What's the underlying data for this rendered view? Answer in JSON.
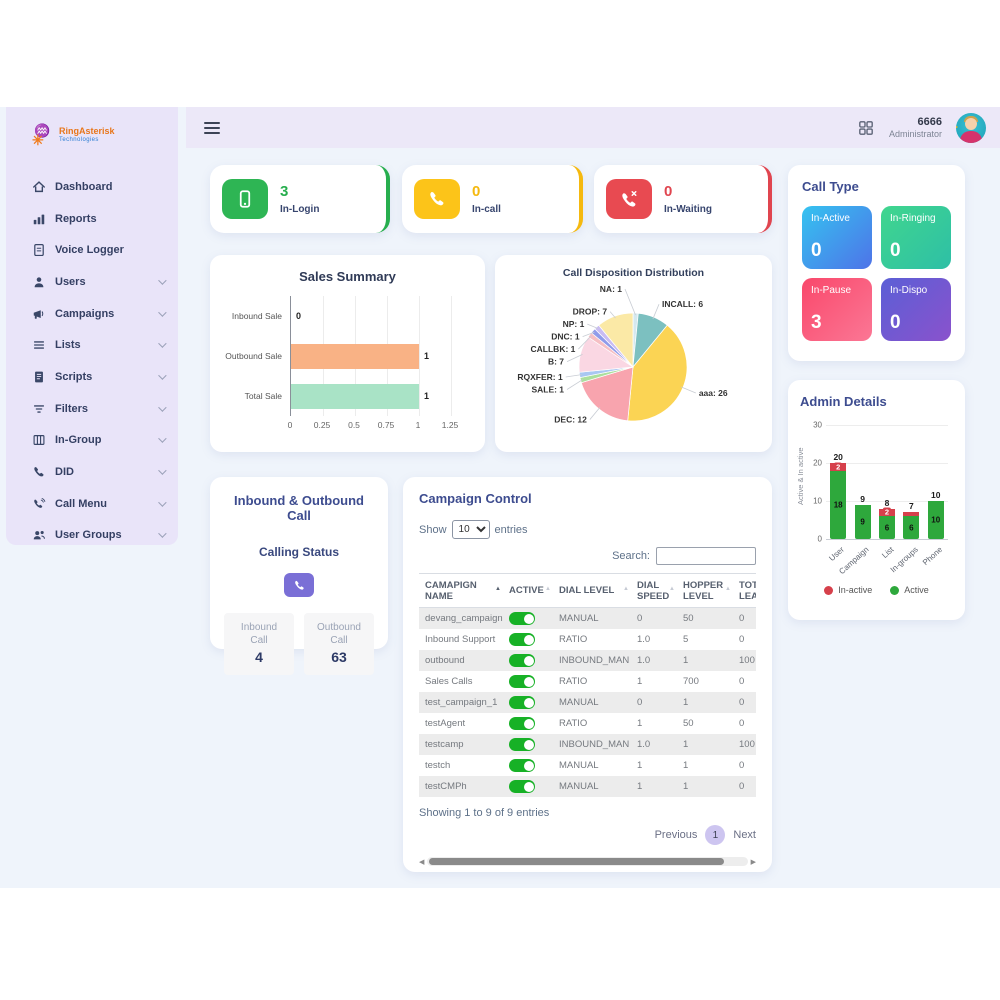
{
  "topbar": {
    "user_id": "6666",
    "user_role": "Administrator"
  },
  "sidebar": {
    "logo_title": "RingAsterisk",
    "logo_subtitle": "Technologies",
    "items": [
      {
        "label": "Dashboard",
        "icon": "home-icon",
        "expandable": false
      },
      {
        "label": "Reports",
        "icon": "bar-chart-icon",
        "expandable": false
      },
      {
        "label": "Voice Logger",
        "icon": "voice-logger-icon",
        "expandable": false
      },
      {
        "label": "Users",
        "icon": "user-icon",
        "expandable": true
      },
      {
        "label": "Campaigns",
        "icon": "megaphone-icon",
        "expandable": true
      },
      {
        "label": "Lists",
        "icon": "list-icon",
        "expandable": true
      },
      {
        "label": "Scripts",
        "icon": "script-icon",
        "expandable": true
      },
      {
        "label": "Filters",
        "icon": "filter-icon",
        "expandable": true
      },
      {
        "label": "In-Group",
        "icon": "columns-icon",
        "expandable": true
      },
      {
        "label": "DID",
        "icon": "phone-icon",
        "expandable": true
      },
      {
        "label": "Call Menu",
        "icon": "call-menu-icon",
        "expandable": true
      },
      {
        "label": "User Groups",
        "icon": "user-group-icon",
        "expandable": true
      }
    ]
  },
  "stat_cards": [
    {
      "value": "3",
      "label": "In-Login",
      "color": "#27AE4E",
      "icon_bg": "#2EB554",
      "icon": "mobile-phone-icon"
    },
    {
      "value": "0",
      "label": "In-call",
      "color": "#F5B90F",
      "icon_bg": "#FCC419",
      "icon": "phone-icon"
    },
    {
      "value": "0",
      "label": "In-Waiting",
      "color": "#E0454F",
      "icon_bg": "#E84A51",
      "icon": "phone-missed-icon"
    }
  ],
  "call_type": {
    "title": "Call Type",
    "tiles": [
      {
        "label": "In-Active",
        "value": "0",
        "gradient": [
          "#35C3F0",
          "#4E73E8"
        ]
      },
      {
        "label": "In-Ringing",
        "value": "0",
        "gradient": [
          "#40D68E",
          "#2EBFA6"
        ]
      },
      {
        "label": "In-Pause",
        "value": "3",
        "gradient": [
          "#F9486B",
          "#FB7795"
        ]
      },
      {
        "label": "In-Dispo",
        "value": "0",
        "gradient": [
          "#5B5FD6",
          "#8A52CC"
        ]
      }
    ]
  },
  "chart_data": [
    {
      "id": "sales_summary",
      "type": "bar",
      "orientation": "horizontal",
      "title": "Sales Summary",
      "categories": [
        "Inbound Sale",
        "Outbound Sale",
        "Total Sale"
      ],
      "values": [
        0,
        1,
        1
      ],
      "bar_colors": [
        "#F9B285",
        "#F9B285",
        "#A9E3C6"
      ],
      "xticks": [
        0,
        0.25,
        0.5,
        0.75,
        1,
        1.25
      ],
      "xlim": [
        0,
        1.25
      ],
      "grid": true
    },
    {
      "id": "call_disposition",
      "type": "pie",
      "title": "Call Disposition Distribution",
      "labels": [
        "NA",
        "INCALL",
        "aaa",
        "DEC",
        "SALE",
        "RQXFER",
        "B",
        "CALLBK",
        "DNC",
        "NP",
        "DROP"
      ],
      "values": [
        1,
        6,
        26,
        12,
        1,
        1,
        7,
        1,
        1,
        1,
        7
      ],
      "colors": [
        "#D5E9EF",
        "#7CC0C0",
        "#FBD454",
        "#F8A4AE",
        "#ABDF9D",
        "#A9C7F2",
        "#FAD7E3",
        "#F6BFC4",
        "#8F9BEA",
        "#C9BCF2",
        "#FBE9A6"
      ]
    },
    {
      "id": "admin_details",
      "type": "stacked-bar",
      "title": "Admin Details",
      "categories": [
        "User",
        "Campaign",
        "List",
        "In-groups",
        "Phone"
      ],
      "series": [
        {
          "name": "Active",
          "color": "#2EA83C",
          "values": [
            18,
            9,
            6,
            6,
            10
          ]
        },
        {
          "name": "In-active",
          "color": "#D6404B",
          "values": [
            2,
            0,
            2,
            1,
            0
          ]
        }
      ],
      "totals": [
        20,
        9,
        8,
        7,
        10
      ],
      "ylabel": "Active & In active",
      "yticks": [
        0,
        10,
        20,
        30
      ],
      "ylim": [
        0,
        30
      ],
      "legend": [
        "In-active",
        "Active"
      ]
    }
  ],
  "inbound_outbound": {
    "title": "Inbound & Outbound Call",
    "subtitle": "Calling Status",
    "phone_button_color": "#7A6FD6",
    "boxes": [
      {
        "label": "Inbound Call",
        "value": "4"
      },
      {
        "label": "Outbound Call",
        "value": "63"
      }
    ]
  },
  "campaign_control": {
    "title": "Campaign Control",
    "show_label": "Show",
    "entries_label": "entries",
    "page_size": "10",
    "search_label": "Search:",
    "search_value": "",
    "headers": [
      "CAMAPIGN NAME",
      "ACTIVE",
      "DIAL LEVEL",
      "DIAL SPEED",
      "HOPPER LEVEL",
      "TOTAL LEADS"
    ],
    "rows": [
      {
        "name": "devang_campaign",
        "active": true,
        "dial_level": "MANUAL",
        "dial_speed": "0",
        "hopper_level": "50",
        "total_leads": "0"
      },
      {
        "name": "Inbound Support",
        "active": true,
        "dial_level": "RATIO",
        "dial_speed": "1.0",
        "hopper_level": "5",
        "total_leads": "0"
      },
      {
        "name": "outbound",
        "active": true,
        "dial_level": "INBOUND_MAN",
        "dial_speed": "1.0",
        "hopper_level": "1",
        "total_leads": "100"
      },
      {
        "name": "Sales Calls",
        "active": true,
        "dial_level": "RATIO",
        "dial_speed": "1",
        "hopper_level": "700",
        "total_leads": "0"
      },
      {
        "name": "test_campaign_1",
        "active": true,
        "dial_level": "MANUAL",
        "dial_speed": "0",
        "hopper_level": "1",
        "total_leads": "0"
      },
      {
        "name": "testAgent",
        "active": true,
        "dial_level": "RATIO",
        "dial_speed": "1",
        "hopper_level": "50",
        "total_leads": "0"
      },
      {
        "name": "testcamp",
        "active": true,
        "dial_level": "INBOUND_MAN",
        "dial_speed": "1.0",
        "hopper_level": "1",
        "total_leads": "100"
      },
      {
        "name": "testch",
        "active": true,
        "dial_level": "MANUAL",
        "dial_speed": "1",
        "hopper_level": "1",
        "total_leads": "0"
      },
      {
        "name": "testCMPh",
        "active": true,
        "dial_level": "MANUAL",
        "dial_speed": "1",
        "hopper_level": "1",
        "total_leads": "0"
      }
    ],
    "footer": "Showing 1 to 9 of 9 entries",
    "pagination": {
      "previous": "Previous",
      "current": "1",
      "next": "Next"
    }
  }
}
